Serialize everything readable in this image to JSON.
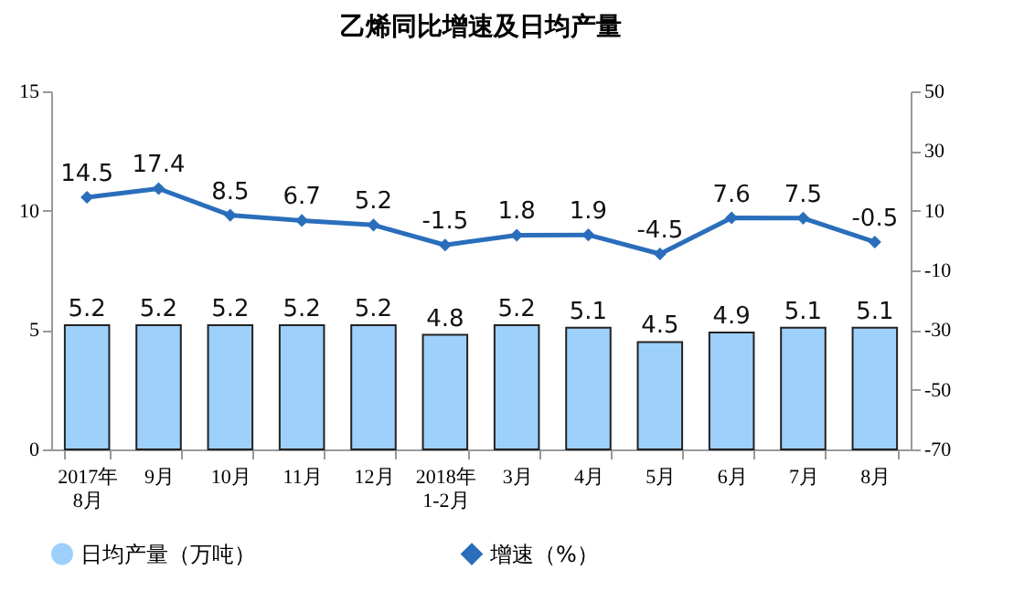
{
  "chart_data": {
    "type": "bar",
    "title": "乙烯同比增速及日均产量",
    "categories": [
      "2017年\n8月",
      "9月",
      "10月",
      "11月",
      "12月",
      "2018年\n1-2月",
      "3月",
      "4月",
      "5月",
      "6月",
      "7月",
      "8月"
    ],
    "series": [
      {
        "name": "日均产量（万吨）",
        "color": "#9dd0fb",
        "values": [
          5.2,
          5.2,
          5.2,
          5.2,
          5.2,
          4.8,
          5.2,
          5.1,
          4.5,
          4.9,
          5.1,
          5.1
        ]
      },
      {
        "name": "增速（%）",
        "type": "line",
        "axis": "y2",
        "color": "#2a6ebb",
        "marker": "diamond",
        "values": [
          14.5,
          17.4,
          8.5,
          6.7,
          5.2,
          -1.5,
          1.8,
          1.9,
          -4.5,
          7.6,
          7.5,
          -0.5
        ]
      }
    ],
    "ylim": [
      0,
      15
    ],
    "yticks": [
      0,
      5,
      10,
      15
    ],
    "y2lim": [
      -70,
      50
    ],
    "y2ticks": [
      -70,
      -50,
      -30,
      -10,
      10,
      30,
      50
    ],
    "data_labels": true,
    "legend": "bottom",
    "grid": false
  }
}
